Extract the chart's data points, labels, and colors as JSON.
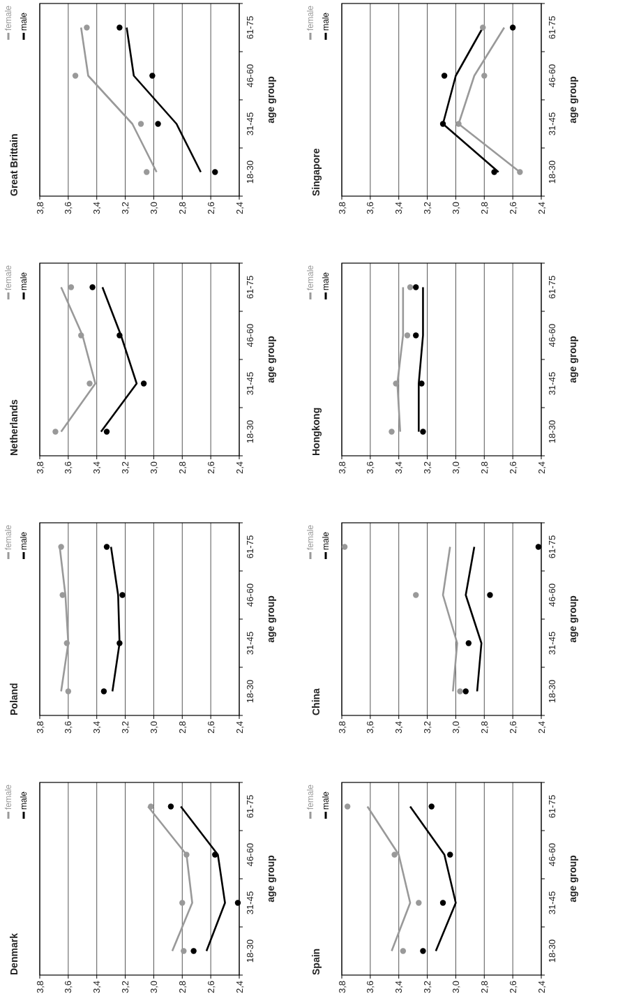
{
  "chart_data": [
    {
      "type": "line",
      "orientation": "horizontal",
      "title": "Denmark",
      "ylabel": "age group",
      "categories": [
        "61-75",
        "46-60",
        "31-45",
        "18-30"
      ],
      "xlim": [
        3.8,
        2.4
      ],
      "xticks": [
        {
          "value": 3.8,
          "label": "3,8"
        },
        {
          "value": 3.6,
          "label": "3,6"
        },
        {
          "value": 3.4,
          "label": "3,4"
        },
        {
          "value": 3.2,
          "label": "3,2"
        },
        {
          "value": 3.0,
          "label": "3,0"
        },
        {
          "value": 2.8,
          "label": "2,8"
        },
        {
          "value": 2.6,
          "label": "2,6"
        },
        {
          "value": 2.4,
          "label": "2,4"
        }
      ],
      "grid": "x",
      "legend": "top left",
      "series": [
        {
          "name": "female",
          "color": "#999999",
          "values": [
            3.04,
            2.77,
            2.73,
            2.87
          ]
        },
        {
          "name": "male",
          "color": "#000000",
          "values": [
            2.81,
            2.55,
            2.5,
            2.63
          ]
        },
        {
          "type": "scatter",
          "marker": "circle",
          "color": "#999999",
          "x": [
            "61-75",
            "46-60",
            "31-45",
            "18-30"
          ],
          "values": [
            3.02,
            2.77,
            2.8,
            2.79
          ]
        },
        {
          "type": "scatter",
          "marker": "circle",
          "color": "#000000",
          "x": [
            "61-75",
            "46-60",
            "31-45",
            "18-30"
          ],
          "values": [
            2.88,
            2.57,
            2.41,
            2.72
          ]
        }
      ]
    },
    {
      "type": "line",
      "orientation": "horizontal",
      "title": "Poland",
      "ylabel": "age group",
      "categories": [
        "61-75",
        "46-60",
        "31-45",
        "18-30"
      ],
      "xlim": [
        3.8,
        2.4
      ],
      "xticks": [
        {
          "value": 3.8,
          "label": "3,8"
        },
        {
          "value": 3.6,
          "label": "3,6"
        },
        {
          "value": 3.4,
          "label": "3,4"
        },
        {
          "value": 3.2,
          "label": "3,2"
        },
        {
          "value": 3.0,
          "label": "3,0"
        },
        {
          "value": 2.8,
          "label": "2,8"
        },
        {
          "value": 2.6,
          "label": "2,6"
        },
        {
          "value": 2.4,
          "label": "2,4"
        }
      ],
      "grid": "x",
      "legend": "top left",
      "series": [
        {
          "name": "female",
          "color": "#999999",
          "values": [
            3.66,
            3.62,
            3.6,
            3.65
          ]
        },
        {
          "name": "male",
          "color": "#000000",
          "values": [
            3.3,
            3.25,
            3.24,
            3.29
          ]
        },
        {
          "type": "scatter",
          "marker": "circle",
          "color": "#999999",
          "x": [
            "61-75",
            "46-60",
            "31-45",
            "18-30"
          ],
          "values": [
            3.65,
            3.64,
            3.61,
            3.6
          ]
        },
        {
          "type": "scatter",
          "marker": "circle",
          "color": "#000000",
          "x": [
            "61-75",
            "46-60",
            "31-45",
            "18-30"
          ],
          "values": [
            3.33,
            3.22,
            3.24,
            3.35
          ]
        }
      ]
    },
    {
      "type": "line",
      "orientation": "horizontal",
      "title": "Netherlands",
      "ylabel": "age group",
      "categories": [
        "61-75",
        "46-60",
        "31-45",
        "18-30"
      ],
      "xlim": [
        3.8,
        2.4
      ],
      "xticks": [
        {
          "value": 3.8,
          "label": "3,8"
        },
        {
          "value": 3.6,
          "label": "3,6"
        },
        {
          "value": 3.4,
          "label": "3,4"
        },
        {
          "value": 3.2,
          "label": "3,2"
        },
        {
          "value": 3.0,
          "label": "3,0"
        },
        {
          "value": 2.8,
          "label": "2,8"
        },
        {
          "value": 2.6,
          "label": "2,6"
        },
        {
          "value": 2.4,
          "label": "2,4"
        }
      ],
      "grid": "x",
      "legend": "top left",
      "series": [
        {
          "name": "female",
          "color": "#999999",
          "values": [
            3.65,
            3.5,
            3.41,
            3.65
          ]
        },
        {
          "name": "male",
          "color": "#000000",
          "values": [
            3.36,
            3.23,
            3.12,
            3.37
          ]
        },
        {
          "type": "scatter",
          "marker": "circle",
          "color": "#999999",
          "x": [
            "61-75",
            "46-60",
            "31-45",
            "18-30"
          ],
          "values": [
            3.58,
            3.51,
            3.45,
            3.69
          ]
        },
        {
          "type": "scatter",
          "marker": "circle",
          "color": "#000000",
          "x": [
            "61-75",
            "46-60",
            "31-45",
            "18-30"
          ],
          "values": [
            3.43,
            3.24,
            3.07,
            3.33
          ]
        }
      ]
    },
    {
      "type": "line",
      "orientation": "horizontal",
      "title": "Great Brittain",
      "ylabel": "age group",
      "categories": [
        "61-75",
        "46-60",
        "31-45",
        "18-30"
      ],
      "xlim": [
        3.8,
        2.4
      ],
      "xticks": [
        {
          "value": 3.8,
          "label": "3,8"
        },
        {
          "value": 3.6,
          "label": "3,6"
        },
        {
          "value": 3.4,
          "label": "3,4"
        },
        {
          "value": 3.2,
          "label": "3,2"
        },
        {
          "value": 3.0,
          "label": "3,0"
        },
        {
          "value": 2.8,
          "label": "2,8"
        },
        {
          "value": 2.6,
          "label": "2,6"
        },
        {
          "value": 2.4,
          "label": "2,4"
        }
      ],
      "grid": "x",
      "legend": "top left",
      "series": [
        {
          "name": "female",
          "color": "#999999",
          "values": [
            3.51,
            3.46,
            3.15,
            2.98
          ]
        },
        {
          "name": "male",
          "color": "#000000",
          "values": [
            3.19,
            3.14,
            2.84,
            2.67
          ]
        },
        {
          "type": "scatter",
          "marker": "circle",
          "color": "#999999",
          "x": [
            "61-75",
            "46-60",
            "31-45",
            "18-30"
          ],
          "values": [
            3.47,
            3.55,
            3.09,
            3.05
          ]
        },
        {
          "type": "scatter",
          "marker": "circle",
          "color": "#000000",
          "x": [
            "61-75",
            "46-60",
            "31-45",
            "18-30"
          ],
          "values": [
            3.24,
            3.01,
            2.97,
            2.57
          ]
        }
      ]
    },
    {
      "type": "line",
      "orientation": "horizontal",
      "title": "Spain",
      "ylabel": "age group",
      "categories": [
        "61-75",
        "46-60",
        "31-45",
        "18-30"
      ],
      "xlim": [
        3.8,
        2.4
      ],
      "xticks": [
        {
          "value": 3.8,
          "label": "3,8"
        },
        {
          "value": 3.6,
          "label": "3,6"
        },
        {
          "value": 3.4,
          "label": "3,4"
        },
        {
          "value": 3.2,
          "label": "3,2"
        },
        {
          "value": 3.0,
          "label": "3,0"
        },
        {
          "value": 2.8,
          "label": "2,8"
        },
        {
          "value": 2.6,
          "label": "2,6"
        },
        {
          "value": 2.4,
          "label": "2,4"
        }
      ],
      "grid": "x",
      "legend": "top left",
      "series": [
        {
          "name": "female",
          "color": "#999999",
          "values": [
            3.62,
            3.4,
            3.32,
            3.45
          ]
        },
        {
          "name": "male",
          "color": "#000000",
          "values": [
            3.32,
            3.08,
            3.0,
            3.14
          ]
        },
        {
          "type": "scatter",
          "marker": "circle",
          "color": "#999999",
          "x": [
            "61-75",
            "46-60",
            "31-45",
            "18-30"
          ],
          "values": [
            3.76,
            3.43,
            3.26,
            3.37
          ]
        },
        {
          "type": "scatter",
          "marker": "circle",
          "color": "#000000",
          "x": [
            "61-75",
            "46-60",
            "31-45",
            "18-30"
          ],
          "values": [
            3.17,
            3.04,
            3.09,
            3.23
          ]
        }
      ]
    },
    {
      "type": "line",
      "orientation": "horizontal",
      "title": "China",
      "ylabel": "age group",
      "categories": [
        "61-75",
        "46-60",
        "31-45",
        "18-30"
      ],
      "xlim": [
        3.8,
        2.4
      ],
      "xticks": [
        {
          "value": 3.8,
          "label": "3,8"
        },
        {
          "value": 3.6,
          "label": "3,6"
        },
        {
          "value": 3.4,
          "label": "3,4"
        },
        {
          "value": 3.2,
          "label": "3,2"
        },
        {
          "value": 3.0,
          "label": "3,0"
        },
        {
          "value": 2.8,
          "label": "2,8"
        },
        {
          "value": 2.6,
          "label": "2,6"
        },
        {
          "value": 2.4,
          "label": "2,4"
        }
      ],
      "grid": "x",
      "legend": "top left",
      "series": [
        {
          "name": "female",
          "color": "#999999",
          "values": [
            3.04,
            3.09,
            2.99,
            3.02
          ]
        },
        {
          "name": "male",
          "color": "#000000",
          "values": [
            2.87,
            2.93,
            2.82,
            2.85
          ]
        },
        {
          "type": "scatter",
          "marker": "circle",
          "color": "#999999",
          "x": [
            "61-75",
            "46-60",
            "31-45",
            "18-30"
          ],
          "values": [
            3.78,
            3.28,
            null,
            2.97
          ]
        },
        {
          "type": "scatter",
          "marker": "circle",
          "color": "#000000",
          "x": [
            "61-75",
            "46-60",
            "31-45",
            "18-30"
          ],
          "values": [
            2.42,
            2.76,
            2.91,
            2.93
          ]
        }
      ]
    },
    {
      "type": "line",
      "orientation": "horizontal",
      "title": "Hongkong",
      "ylabel": "age group",
      "categories": [
        "61-75",
        "46-60",
        "31-45",
        "18-30"
      ],
      "xlim": [
        3.8,
        2.4
      ],
      "xticks": [
        {
          "value": 3.8,
          "label": "3,8"
        },
        {
          "value": 3.6,
          "label": "3,6"
        },
        {
          "value": 3.4,
          "label": "3,4"
        },
        {
          "value": 3.2,
          "label": "3,2"
        },
        {
          "value": 3.0,
          "label": "3,0"
        },
        {
          "value": 2.8,
          "label": "2,8"
        },
        {
          "value": 2.6,
          "label": "2,6"
        },
        {
          "value": 2.4,
          "label": "2,4"
        }
      ],
      "grid": "x",
      "legend": "top left",
      "series": [
        {
          "name": "female",
          "color": "#999999",
          "values": [
            3.37,
            3.37,
            3.41,
            3.39
          ]
        },
        {
          "name": "male",
          "color": "#000000",
          "values": [
            3.23,
            3.23,
            3.26,
            3.26
          ]
        },
        {
          "type": "scatter",
          "marker": "circle",
          "color": "#999999",
          "x": [
            "61-75",
            "46-60",
            "31-45",
            "18-30"
          ],
          "values": [
            3.32,
            3.34,
            3.42,
            3.45
          ]
        },
        {
          "type": "scatter",
          "marker": "circle",
          "color": "#000000",
          "x": [
            "61-75",
            "46-60",
            "31-45",
            "18-30"
          ],
          "values": [
            3.28,
            3.28,
            3.24,
            3.23
          ]
        }
      ]
    },
    {
      "type": "line",
      "orientation": "horizontal",
      "title": "Singapore",
      "ylabel": "age group",
      "categories": [
        "61-75",
        "46-60",
        "31-45",
        "18-30"
      ],
      "xlim": [
        3.8,
        2.4
      ],
      "xticks": [
        {
          "value": 3.8,
          "label": "3,8"
        },
        {
          "value": 3.6,
          "label": "3,6"
        },
        {
          "value": 3.4,
          "label": "3,4"
        },
        {
          "value": 3.2,
          "label": "3,2"
        },
        {
          "value": 3.0,
          "label": "3,0"
        },
        {
          "value": 2.8,
          "label": "2,8"
        },
        {
          "value": 2.6,
          "label": "2,6"
        },
        {
          "value": 2.4,
          "label": "2,4"
        }
      ],
      "grid": "x",
      "legend": "top left",
      "series": [
        {
          "name": "female",
          "color": "#999999",
          "values": [
            2.66,
            2.87,
            2.98,
            2.55
          ]
        },
        {
          "name": "male",
          "color": "#000000",
          "values": [
            2.81,
            3.0,
            3.09,
            2.7
          ]
        },
        {
          "type": "scatter",
          "marker": "circle",
          "color": "#999999",
          "x": [
            "61-75",
            "46-60",
            "31-45",
            "18-30"
          ],
          "values": [
            2.81,
            2.8,
            2.98,
            2.55
          ]
        },
        {
          "type": "scatter",
          "marker": "circle",
          "color": "#000000",
          "x": [
            "61-75",
            "46-60",
            "31-45",
            "18-30"
          ],
          "values": [
            2.6,
            3.08,
            3.09,
            2.73
          ]
        }
      ]
    }
  ]
}
